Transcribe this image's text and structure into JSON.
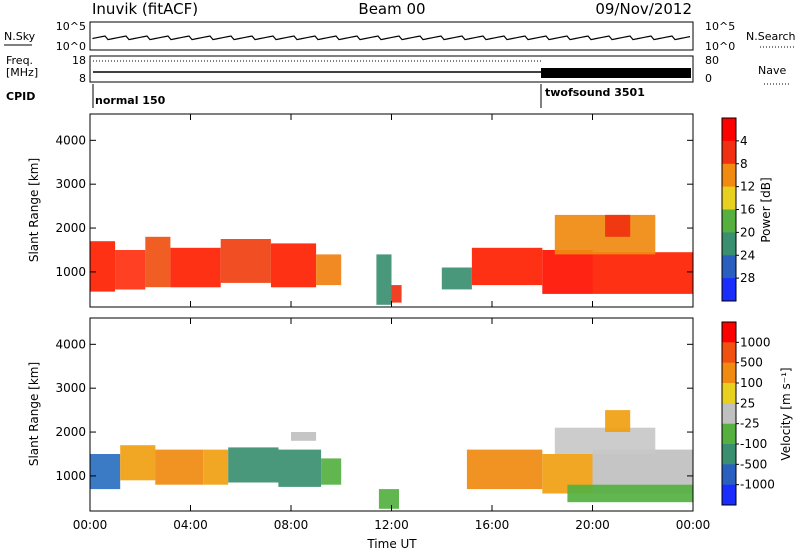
{
  "header": {
    "station": "Inuvik (fitACF)",
    "beam": "Beam 00",
    "date": "09/Nov/2012"
  },
  "top_panels": {
    "nsky_label": "N.Sky",
    "nsky_ticks": [
      "10^5",
      "10^0"
    ],
    "nsearch_label": "N.Search",
    "nsearch_ticks": [
      "10^5",
      "10^0"
    ],
    "freq_label_1": "Freq.",
    "freq_label_2": "[MHz]",
    "freq_ticks": [
      "18",
      "8"
    ],
    "nave_label": "Nave",
    "nave_ticks": [
      "80",
      "0"
    ],
    "cpid_label": "CPID",
    "cpid_modes": [
      "normal 150",
      "twofsound 3501"
    ]
  },
  "chart_data": [
    {
      "type": "heatmap",
      "name": "power-panel",
      "ylabel": "Slant Range [km]",
      "xlabel": "",
      "x_ticks": [
        "00:00",
        "04:00",
        "08:00",
        "12:00",
        "16:00",
        "20:00",
        "00:00"
      ],
      "y_ticks": [
        1000,
        2000,
        3000,
        4000
      ],
      "ylim": [
        200,
        4600
      ],
      "xlim_hours": [
        0,
        24
      ],
      "colorbar": {
        "label": "Power [dB]",
        "ticks": [
          "4",
          "8",
          "12",
          "16",
          "20",
          "24",
          "28"
        ],
        "colors": [
          "#1a2dff",
          "#2a5fbf",
          "#3a8f70",
          "#55b040",
          "#e8d020",
          "#f08a10",
          "#f03010",
          "#ff0000"
        ]
      },
      "cells": [
        {
          "t0": 0.0,
          "t1": 1.0,
          "r0": 550,
          "r1": 1700,
          "c": "#ff2000"
        },
        {
          "t0": 1.0,
          "t1": 2.2,
          "r0": 600,
          "r1": 1500,
          "c": "#ff3010"
        },
        {
          "t0": 2.2,
          "t1": 3.2,
          "r0": 650,
          "r1": 1800,
          "c": "#f05010"
        },
        {
          "t0": 3.2,
          "t1": 5.2,
          "r0": 650,
          "r1": 1550,
          "c": "#ff2000"
        },
        {
          "t0": 5.2,
          "t1": 7.2,
          "r0": 750,
          "r1": 1750,
          "c": "#f04010"
        },
        {
          "t0": 7.2,
          "t1": 9.0,
          "r0": 650,
          "r1": 1650,
          "c": "#ff2000"
        },
        {
          "t0": 9.0,
          "t1": 10.0,
          "r0": 700,
          "r1": 1400,
          "c": "#f08010"
        },
        {
          "t0": 11.4,
          "t1": 12.0,
          "r0": 250,
          "r1": 1400,
          "c": "#3a8f70"
        },
        {
          "t0": 12.0,
          "t1": 12.4,
          "r0": 300,
          "r1": 700,
          "c": "#f03010"
        },
        {
          "t0": 14.0,
          "t1": 15.2,
          "r0": 600,
          "r1": 1100,
          "c": "#3a8f70"
        },
        {
          "t0": 15.2,
          "t1": 18.0,
          "r0": 700,
          "r1": 1550,
          "c": "#ff2000"
        },
        {
          "t0": 18.0,
          "t1": 20.0,
          "r0": 500,
          "r1": 1500,
          "c": "#ff1000"
        },
        {
          "t0": 20.0,
          "t1": 24.0,
          "r0": 500,
          "r1": 1450,
          "c": "#ff2000"
        },
        {
          "t0": 18.5,
          "t1": 22.5,
          "r0": 1400,
          "r1": 2300,
          "c": "#f08a10"
        },
        {
          "t0": 20.5,
          "t1": 21.5,
          "r0": 1800,
          "r1": 2300,
          "c": "#f03010"
        }
      ]
    },
    {
      "type": "heatmap",
      "name": "velocity-panel",
      "ylabel": "Slant Range [km]",
      "xlabel": "Time UT",
      "x_ticks": [
        "00:00",
        "04:00",
        "08:00",
        "12:00",
        "16:00",
        "20:00",
        "00:00"
      ],
      "y_ticks": [
        1000,
        2000,
        3000,
        4000
      ],
      "ylim": [
        200,
        4600
      ],
      "xlim_hours": [
        0,
        24
      ],
      "colorbar": {
        "label": "Velocity [m s⁻¹]",
        "ticks": [
          "1000",
          "500",
          "100",
          "25",
          "-25",
          "-100",
          "-500",
          "-1000"
        ],
        "colors": [
          "#1a2dff",
          "#2a5fbf",
          "#3a8f70",
          "#55b040",
          "#c0c0c0",
          "#e8d020",
          "#f08a10",
          "#f05010",
          "#ff0000"
        ]
      },
      "cells": [
        {
          "t0": 0.0,
          "t1": 1.2,
          "r0": 700,
          "r1": 1500,
          "c": "#2a6fbf"
        },
        {
          "t0": 1.2,
          "t1": 2.6,
          "r0": 900,
          "r1": 1700,
          "c": "#f0a010"
        },
        {
          "t0": 2.6,
          "t1": 4.5,
          "r0": 800,
          "r1": 1600,
          "c": "#f08a10"
        },
        {
          "t0": 4.5,
          "t1": 5.5,
          "r0": 800,
          "r1": 1600,
          "c": "#f0a010"
        },
        {
          "t0": 5.5,
          "t1": 7.5,
          "r0": 850,
          "r1": 1650,
          "c": "#3a8f70"
        },
        {
          "t0": 7.5,
          "t1": 9.2,
          "r0": 750,
          "r1": 1600,
          "c": "#3a8f70"
        },
        {
          "t0": 9.2,
          "t1": 10.0,
          "r0": 800,
          "r1": 1400,
          "c": "#55b040"
        },
        {
          "t0": 8.0,
          "t1": 9.0,
          "r0": 1800,
          "r1": 2000,
          "c": "#c0c0c0"
        },
        {
          "t0": 11.5,
          "t1": 12.3,
          "r0": 250,
          "r1": 700,
          "c": "#55b040"
        },
        {
          "t0": 15.0,
          "t1": 18.0,
          "r0": 700,
          "r1": 1600,
          "c": "#f08a10"
        },
        {
          "t0": 18.0,
          "t1": 20.0,
          "r0": 600,
          "r1": 1500,
          "c": "#f0a010"
        },
        {
          "t0": 20.0,
          "t1": 24.0,
          "r0": 600,
          "r1": 1600,
          "c": "#c0c0c0"
        },
        {
          "t0": 18.5,
          "t1": 22.5,
          "r0": 1500,
          "r1": 2100,
          "c": "#c8c8c8"
        },
        {
          "t0": 20.5,
          "t1": 21.5,
          "r0": 2000,
          "r1": 2500,
          "c": "#f0a010"
        },
        {
          "t0": 19.0,
          "t1": 24.0,
          "r0": 400,
          "r1": 800,
          "c": "#55b040"
        }
      ]
    }
  ]
}
